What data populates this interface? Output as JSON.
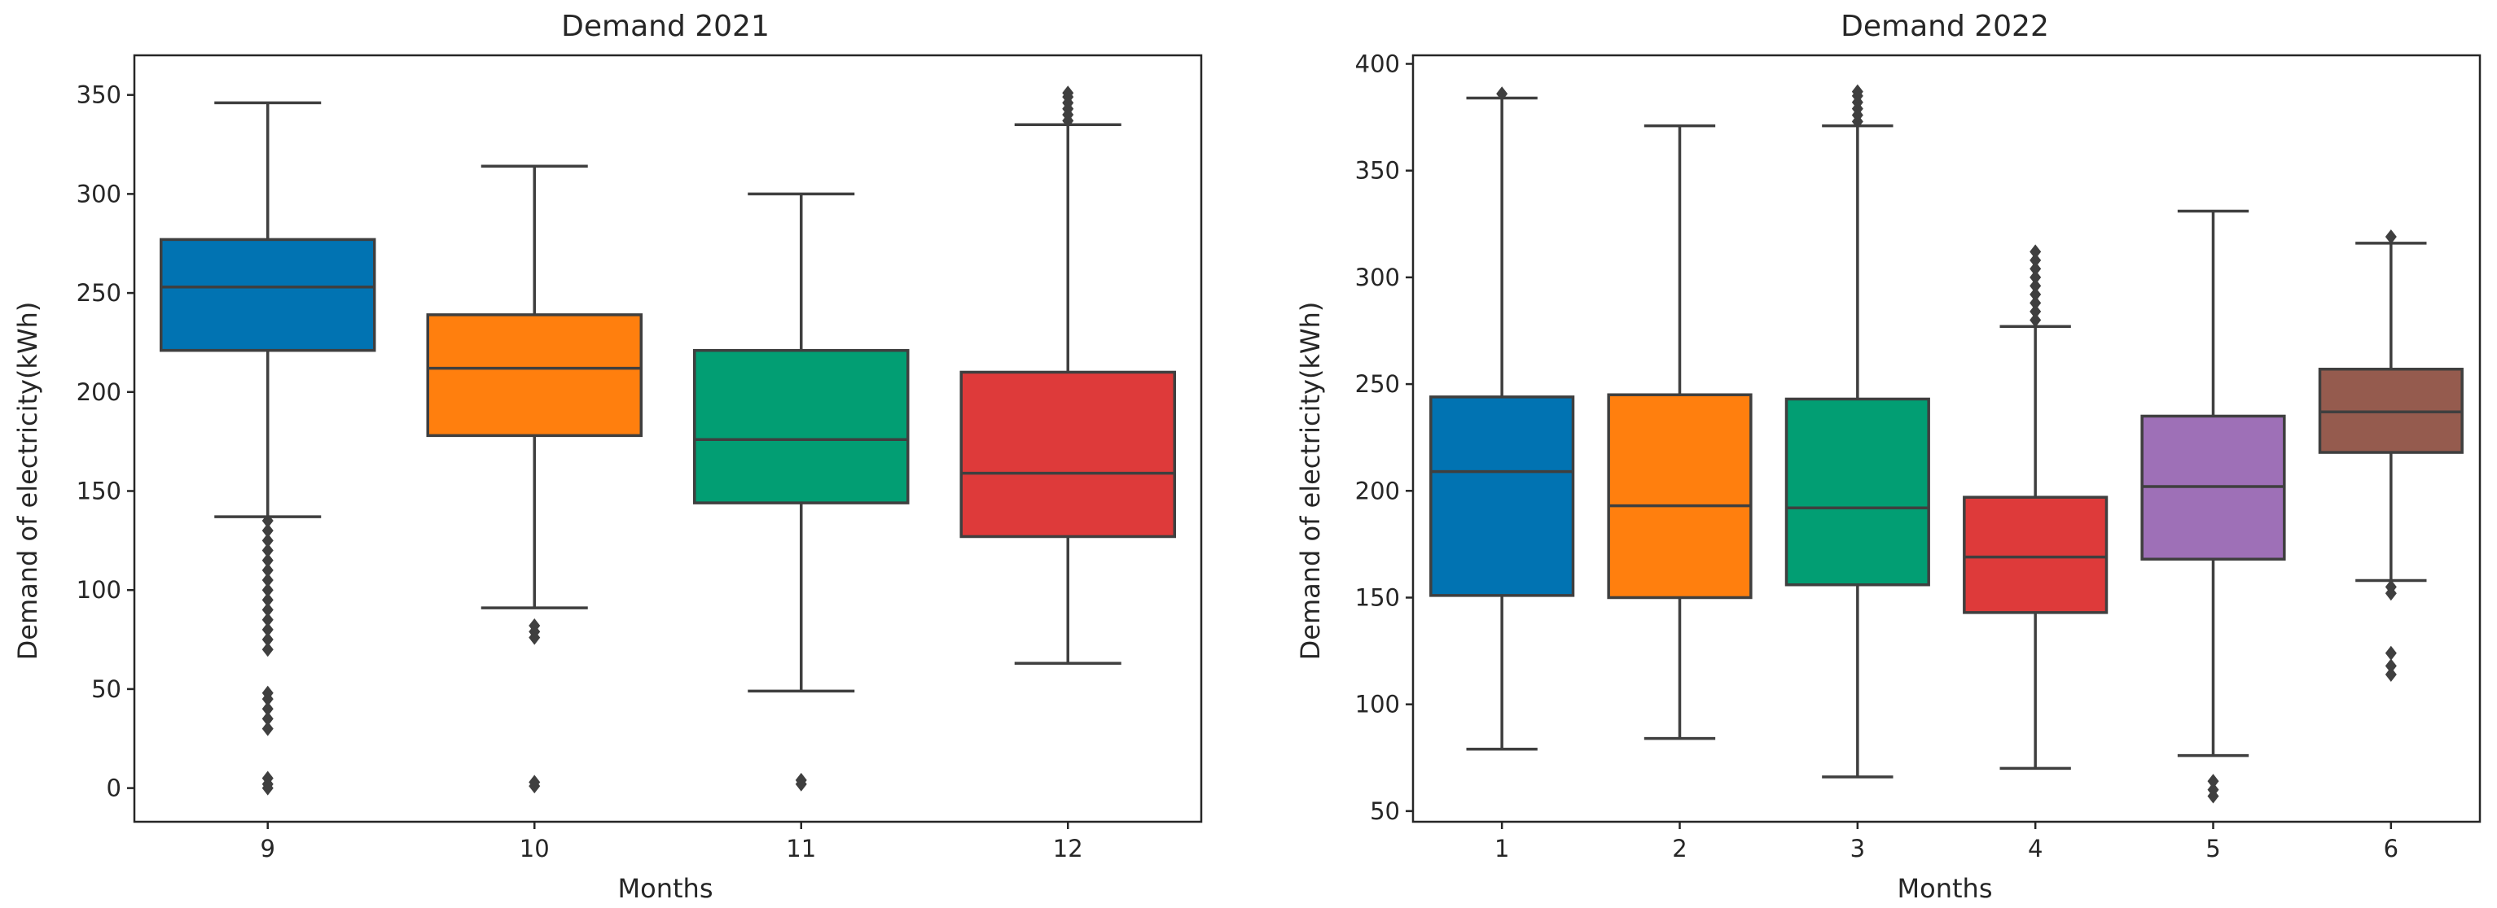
{
  "chart_data": [
    {
      "type": "boxplot",
      "title": "Demand 2021",
      "xlabel": "Months",
      "ylabel": "Demand of electricity(kWh)",
      "ylim": [
        -17,
        370
      ],
      "yticks": [
        0,
        50,
        100,
        150,
        200,
        250,
        300,
        350
      ],
      "categories": [
        "9",
        "10",
        "11",
        "12"
      ],
      "boxes": [
        {
          "category": "9",
          "color": "#0173b2",
          "whislo": 137,
          "q1": 221,
          "median": 253,
          "q3": 277,
          "whishi": 346,
          "fliers": [
            135,
            130,
            125,
            120,
            115,
            110,
            105,
            100,
            95,
            90,
            85,
            80,
            75,
            70,
            48,
            45,
            40,
            35,
            30,
            5,
            2,
            0
          ]
        },
        {
          "category": "10",
          "color": "#ff7f0e",
          "whislo": 91,
          "q1": 178,
          "median": 212,
          "q3": 239,
          "whishi": 314,
          "fliers": [
            82,
            79,
            76,
            3,
            1
          ]
        },
        {
          "category": "11",
          "color": "#029e73",
          "whislo": 49,
          "q1": 144,
          "median": 176,
          "q3": 221,
          "whishi": 300,
          "fliers": [
            4,
            2
          ]
        },
        {
          "category": "12",
          "color": "#de3a3a",
          "whislo": 63,
          "q1": 127,
          "median": 159,
          "q3": 210,
          "whishi": 335,
          "fliers": [
            337,
            340,
            343,
            346,
            349,
            351
          ]
        }
      ]
    },
    {
      "type": "boxplot",
      "title": "Demand 2022",
      "xlabel": "Months",
      "ylabel": "Demand of electricity(kWh)",
      "ylim": [
        45,
        404
      ],
      "yticks": [
        50,
        100,
        150,
        200,
        250,
        300,
        350,
        400
      ],
      "categories": [
        "1",
        "2",
        "3",
        "4",
        "5",
        "6"
      ],
      "boxes": [
        {
          "category": "1",
          "color": "#0173b2",
          "whislo": 79,
          "q1": 151,
          "median": 209,
          "q3": 244,
          "whishi": 384,
          "fliers": [
            386
          ]
        },
        {
          "category": "2",
          "color": "#ff7f0e",
          "whislo": 84,
          "q1": 150,
          "median": 193,
          "q3": 245,
          "whishi": 371,
          "fliers": []
        },
        {
          "category": "3",
          "color": "#029e73",
          "whislo": 66,
          "q1": 156,
          "median": 192,
          "q3": 243,
          "whishi": 371,
          "fliers": [
            373,
            376,
            379,
            382,
            385,
            387
          ]
        },
        {
          "category": "4",
          "color": "#de3a3a",
          "whislo": 70,
          "q1": 143,
          "median": 169,
          "q3": 197,
          "whishi": 277,
          "fliers": [
            280,
            284,
            288,
            292,
            296,
            300,
            304,
            308,
            312
          ]
        },
        {
          "category": "5",
          "color": "#9e70b7",
          "whislo": 76,
          "q1": 168,
          "median": 202,
          "q3": 235,
          "whishi": 331,
          "fliers": [
            64,
            60,
            57
          ]
        },
        {
          "category": "6",
          "color": "#955b4e",
          "whislo": 158,
          "q1": 218,
          "median": 237,
          "q3": 257,
          "whishi": 316,
          "fliers": [
            319,
            155,
            152,
            124,
            118,
            114
          ]
        }
      ]
    }
  ]
}
